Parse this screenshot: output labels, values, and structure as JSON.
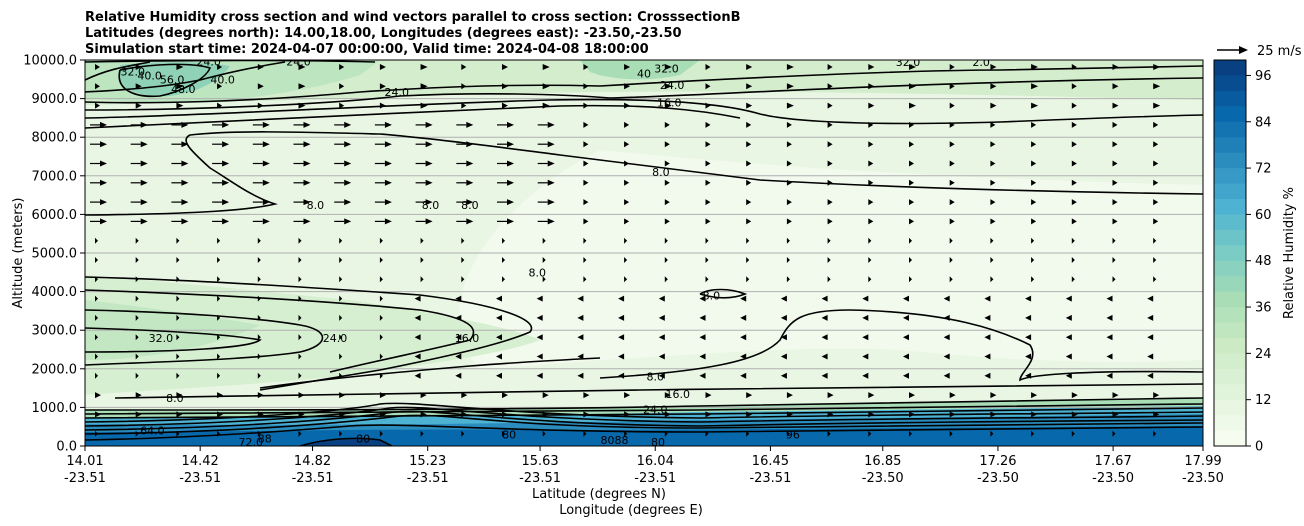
{
  "chart_data": {
    "type": "heatmap",
    "title_lines": [
      "Relative Humidity cross section and wind vectors parallel to cross section: CrosssectionB",
      "Latitudes (degrees north): 14.00,18.00, Longitudes (degrees east): -23.50,-23.50",
      "Simulation start time: 2024-04-07 00:00:00, Valid time: 2024-04-08 18:00:00"
    ],
    "ylabel": "Altitude (meters)",
    "xlabel": "Latitude (degrees N)",
    "xlabel2": "Longitude (degrees E)",
    "x_range": [
      14.01,
      17.99
    ],
    "y_range": [
      0,
      10000
    ],
    "x_ticks": [
      {
        "lat": "14.01",
        "lon": "-23.51",
        "value": 14.01
      },
      {
        "lat": "14.42",
        "lon": "-23.51",
        "value": 14.42
      },
      {
        "lat": "14.82",
        "lon": "-23.51",
        "value": 14.82
      },
      {
        "lat": "15.23",
        "lon": "-23.51",
        "value": 15.23
      },
      {
        "lat": "15.63",
        "lon": "-23.51",
        "value": 15.63
      },
      {
        "lat": "16.04",
        "lon": "-23.51",
        "value": 16.04
      },
      {
        "lat": "16.45",
        "lon": "-23.51",
        "value": 16.45
      },
      {
        "lat": "16.85",
        "lon": "-23.50",
        "value": 16.85
      },
      {
        "lat": "17.26",
        "lon": "-23.50",
        "value": 17.26
      },
      {
        "lat": "17.67",
        "lon": "-23.50",
        "value": 17.67
      },
      {
        "lat": "17.99",
        "lon": "-23.50",
        "value": 17.99
      }
    ],
    "y_ticks": [
      "0.0",
      "1000.0",
      "2000.0",
      "3000.0",
      "4000.0",
      "5000.0",
      "6000.0",
      "7000.0",
      "8000.0",
      "9000.0",
      "10000.0"
    ],
    "grid": "horizontal",
    "colorbar": {
      "label": "Relative Humidity %",
      "range": [
        0,
        100
      ],
      "ticks": [
        "0",
        "12",
        "24",
        "36",
        "48",
        "60",
        "72",
        "84",
        "96"
      ],
      "colors": [
        "#f7fcf0",
        "#e0f3db",
        "#ccebc5",
        "#a8ddb5",
        "#7bccc4",
        "#4eb3d3",
        "#2b8cbe",
        "#0868ac",
        "#084081"
      ]
    },
    "quiver_key": "25 m/s",
    "contour_labels": [
      {
        "text": "56.0",
        "x": 14.32,
        "y": 9500
      },
      {
        "text": "48.0",
        "x": 14.36,
        "y": 9250
      },
      {
        "text": "40.0",
        "x": 14.24,
        "y": 9600
      },
      {
        "text": "32.0",
        "x": 14.18,
        "y": 9700
      },
      {
        "text": "40.0",
        "x": 14.5,
        "y": 9500
      },
      {
        "text": "24.0",
        "x": 14.45,
        "y": 9960
      },
      {
        "text": "24.0",
        "x": 14.77,
        "y": 9960
      },
      {
        "text": "24.0",
        "x": 15.12,
        "y": 9170
      },
      {
        "text": "40",
        "x": 16.0,
        "y": 9650
      },
      {
        "text": "32.0",
        "x": 16.08,
        "y": 9780
      },
      {
        "text": "24.0",
        "x": 16.1,
        "y": 9350
      },
      {
        "text": "16.0",
        "x": 16.09,
        "y": 8900
      },
      {
        "text": "32.0",
        "x": 16.94,
        "y": 9950
      },
      {
        "text": "2.0",
        "x": 17.2,
        "y": 9950
      },
      {
        "text": "8.0",
        "x": 16.06,
        "y": 7100
      },
      {
        "text": "8.0",
        "x": 14.83,
        "y": 6250
      },
      {
        "text": "8.0",
        "x": 15.24,
        "y": 6250
      },
      {
        "text": "8.0",
        "x": 15.38,
        "y": 6250
      },
      {
        "text": "8.0",
        "x": 15.62,
        "y": 4500
      },
      {
        "text": "8.0",
        "x": 16.24,
        "y": 3900
      },
      {
        "text": "32.0",
        "x": 14.28,
        "y": 2800
      },
      {
        "text": "24.0",
        "x": 14.9,
        "y": 2800
      },
      {
        "text": "16.0",
        "x": 15.37,
        "y": 2800
      },
      {
        "text": "8.0",
        "x": 14.33,
        "y": 1250
      },
      {
        "text": "8.0",
        "x": 16.04,
        "y": 1800
      },
      {
        "text": "16.0",
        "x": 16.12,
        "y": 1350
      },
      {
        "text": "24.0",
        "x": 16.04,
        "y": 950
      },
      {
        "text": "72.0",
        "x": 14.6,
        "y": 100
      },
      {
        "text": "80",
        "x": 15.0,
        "y": 200
      },
      {
        "text": "88",
        "x": 14.65,
        "y": 200
      },
      {
        "text": "80",
        "x": 15.52,
        "y": 300
      },
      {
        "text": "80",
        "x": 15.87,
        "y": 150
      },
      {
        "text": "80",
        "x": 16.05,
        "y": 100
      },
      {
        "text": "88",
        "x": 15.92,
        "y": 150
      },
      {
        "text": "96",
        "x": 16.53,
        "y": 300
      },
      {
        "text": "64.0",
        "x": 14.25,
        "y": 400
      }
    ]
  }
}
